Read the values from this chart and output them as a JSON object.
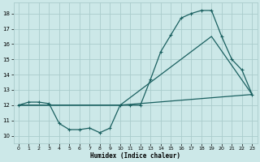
{
  "xlabel": "Humidex (Indice chaleur)",
  "xlim": [
    -0.5,
    23.5
  ],
  "ylim": [
    9.5,
    18.7
  ],
  "xticks": [
    0,
    1,
    2,
    3,
    4,
    5,
    6,
    7,
    8,
    9,
    10,
    11,
    12,
    13,
    14,
    15,
    16,
    17,
    18,
    19,
    20,
    21,
    22,
    23
  ],
  "yticks": [
    10,
    11,
    12,
    13,
    14,
    15,
    16,
    17,
    18
  ],
  "bg_color": "#cce8e8",
  "grid_color": "#aacccc",
  "line_color": "#1a6060",
  "line1_x": [
    0,
    1,
    2,
    3,
    4,
    5,
    6,
    7,
    8,
    9,
    10,
    11,
    12,
    13,
    14,
    15,
    16,
    17,
    18,
    19,
    20,
    21,
    22,
    23
  ],
  "line1_y": [
    12.0,
    12.2,
    12.2,
    12.1,
    10.8,
    10.4,
    10.4,
    10.5,
    10.2,
    10.5,
    12.0,
    12.0,
    12.0,
    13.7,
    15.5,
    16.6,
    17.7,
    18.0,
    18.2,
    18.2,
    16.5,
    15.0,
    14.3,
    12.7
  ],
  "line2_x": [
    0,
    3,
    10,
    19,
    23
  ],
  "line2_y": [
    12.0,
    12.0,
    12.0,
    16.5,
    12.7
  ],
  "line3_x": [
    0,
    3,
    10,
    23
  ],
  "line3_y": [
    12.0,
    12.0,
    12.0,
    12.7
  ]
}
